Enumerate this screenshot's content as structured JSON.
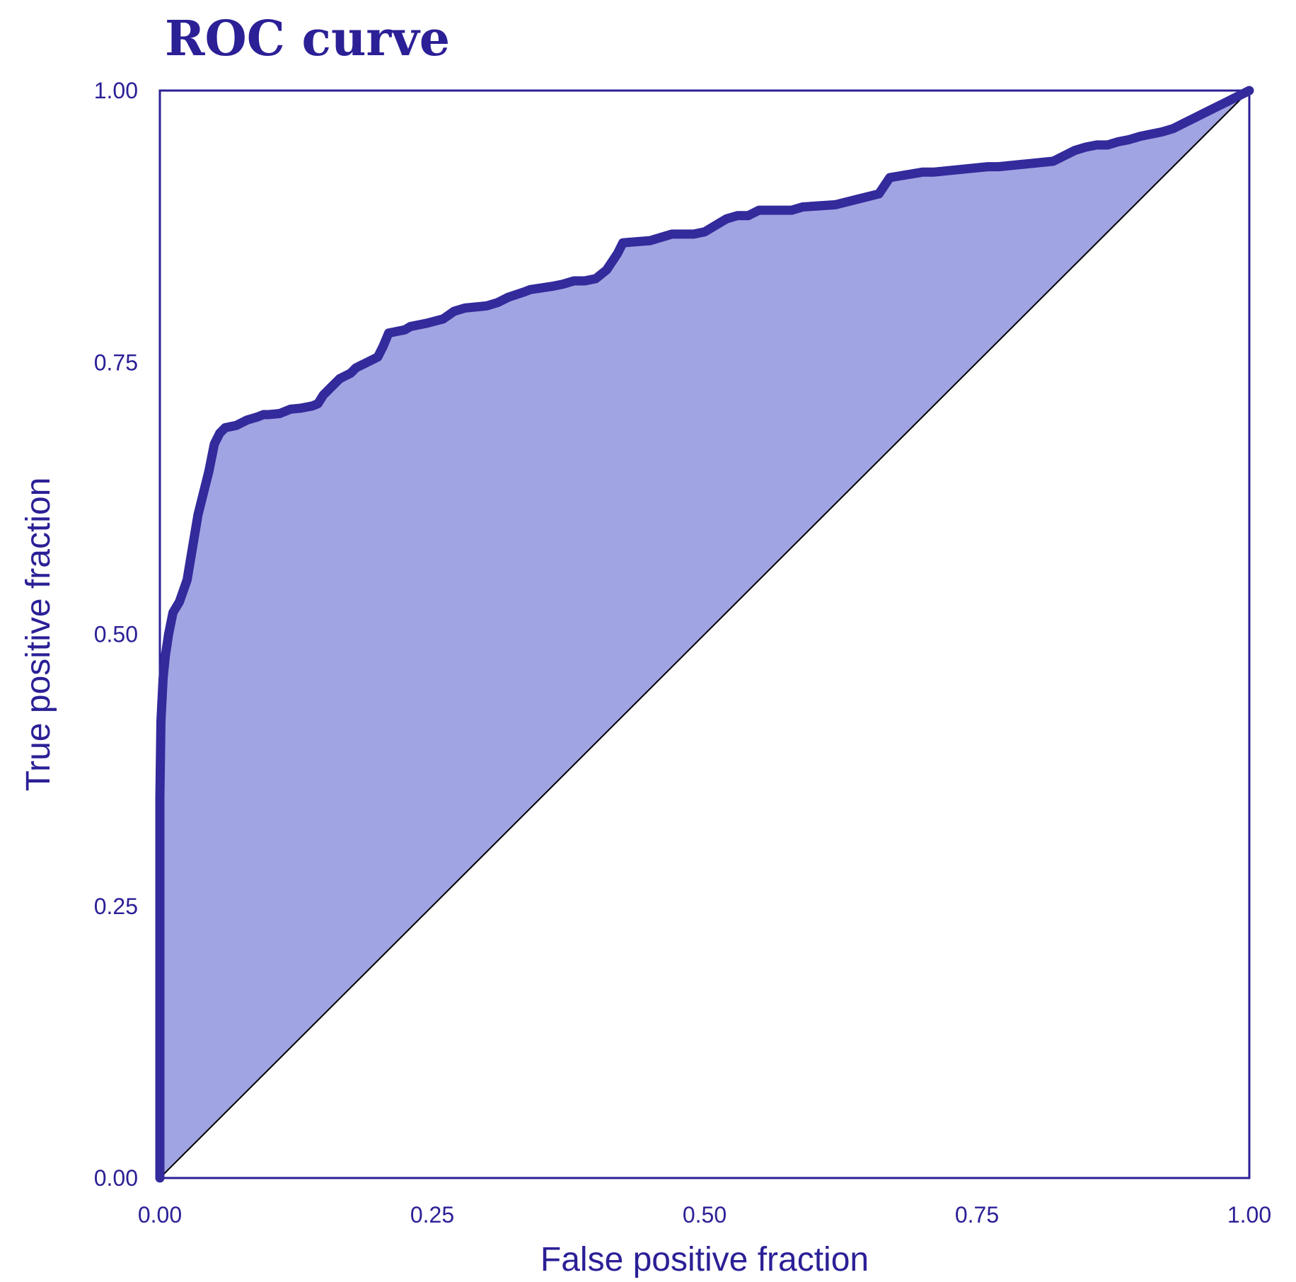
{
  "colors": {
    "curve": "#332a9c",
    "fill": "#a1a4e2",
    "frame": "#2b2096",
    "diagonal": "#000000",
    "text": "#2b2096"
  },
  "chart_data": {
    "type": "area",
    "title": "ROC curve",
    "xlabel": "False positive fraction",
    "ylabel": "True positive fraction",
    "xlim": [
      0,
      1
    ],
    "ylim": [
      0,
      1
    ],
    "xticks": [
      "0.00",
      "0.25",
      "0.50",
      "0.75",
      "1.00"
    ],
    "yticks": [
      "0.00",
      "0.25",
      "0.50",
      "0.75",
      "1.00"
    ],
    "grid": false,
    "reference_line": {
      "x": [
        0,
        1
      ],
      "y": [
        0,
        1
      ]
    },
    "series": [
      {
        "x": [
          0.0,
          0.0,
          0.001,
          0.003,
          0.005,
          0.008,
          0.012,
          0.018,
          0.025,
          0.03,
          0.035,
          0.04,
          0.045,
          0.05,
          0.055,
          0.06,
          0.07,
          0.08,
          0.09,
          0.095,
          0.1,
          0.11,
          0.115,
          0.12,
          0.13,
          0.14,
          0.145,
          0.15,
          0.16,
          0.165,
          0.175,
          0.18,
          0.19,
          0.2,
          0.205,
          0.21,
          0.225,
          0.23,
          0.245,
          0.26,
          0.27,
          0.28,
          0.3,
          0.31,
          0.32,
          0.335,
          0.34,
          0.36,
          0.37,
          0.38,
          0.39,
          0.4,
          0.41,
          0.42,
          0.425,
          0.45,
          0.46,
          0.47,
          0.49,
          0.5,
          0.51,
          0.52,
          0.53,
          0.54,
          0.55,
          0.58,
          0.59,
          0.62,
          0.64,
          0.66,
          0.67,
          0.7,
          0.71,
          0.74,
          0.76,
          0.77,
          0.79,
          0.8,
          0.82,
          0.83,
          0.84,
          0.85,
          0.86,
          0.87,
          0.88,
          0.89,
          0.9,
          0.91,
          0.92,
          0.93,
          0.94,
          0.95,
          0.96,
          0.97,
          0.98,
          0.99,
          1.0
        ],
        "y": [
          0.0,
          0.35,
          0.42,
          0.46,
          0.48,
          0.5,
          0.52,
          0.53,
          0.55,
          0.58,
          0.61,
          0.63,
          0.65,
          0.675,
          0.685,
          0.69,
          0.692,
          0.697,
          0.7,
          0.702,
          0.702,
          0.703,
          0.705,
          0.707,
          0.708,
          0.71,
          0.712,
          0.72,
          0.73,
          0.735,
          0.74,
          0.745,
          0.75,
          0.755,
          0.765,
          0.777,
          0.78,
          0.783,
          0.786,
          0.79,
          0.797,
          0.8,
          0.802,
          0.805,
          0.81,
          0.815,
          0.817,
          0.82,
          0.822,
          0.825,
          0.825,
          0.827,
          0.835,
          0.85,
          0.86,
          0.862,
          0.865,
          0.868,
          0.868,
          0.87,
          0.876,
          0.882,
          0.885,
          0.885,
          0.89,
          0.89,
          0.893,
          0.895,
          0.9,
          0.905,
          0.92,
          0.925,
          0.925,
          0.928,
          0.93,
          0.93,
          0.932,
          0.933,
          0.935,
          0.94,
          0.945,
          0.948,
          0.95,
          0.95,
          0.953,
          0.955,
          0.958,
          0.96,
          0.962,
          0.965,
          0.97,
          0.975,
          0.98,
          0.985,
          0.99,
          0.995,
          1.0
        ]
      }
    ]
  }
}
